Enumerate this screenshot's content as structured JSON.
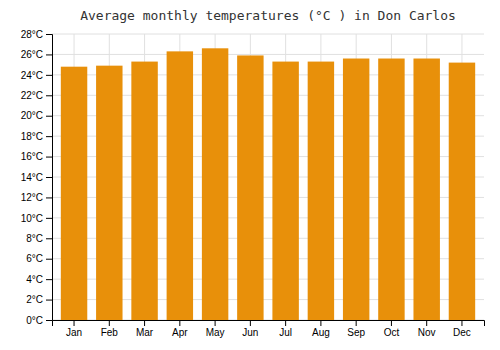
{
  "chart_data": {
    "type": "bar",
    "title": "Average monthly temperatures (°C ) in Don Carlos",
    "categories": [
      "Jan",
      "Feb",
      "Mar",
      "Apr",
      "May",
      "Jun",
      "Jul",
      "Aug",
      "Sep",
      "Oct",
      "Nov",
      "Dec"
    ],
    "values": [
      24.8,
      24.9,
      25.3,
      26.3,
      26.6,
      25.9,
      25.3,
      25.3,
      25.6,
      25.6,
      25.6,
      25.2
    ],
    "color": "#E8900A",
    "ylim": [
      0,
      28
    ],
    "yticks": [
      {
        "value": 0,
        "label": "0°C"
      },
      {
        "value": 2,
        "label": "2°C"
      },
      {
        "value": 4,
        "label": "4°C"
      },
      {
        "value": 6,
        "label": "6°C"
      },
      {
        "value": 8,
        "label": "8°C"
      },
      {
        "value": 10,
        "label": "10°C"
      },
      {
        "value": 12,
        "label": "12°C"
      },
      {
        "value": 14,
        "label": "14°C"
      },
      {
        "value": 16,
        "label": "16°C"
      },
      {
        "value": 18,
        "label": "18°C"
      },
      {
        "value": 20,
        "label": "20°C"
      },
      {
        "value": 22,
        "label": "22°C"
      },
      {
        "value": 24,
        "label": "24°C"
      },
      {
        "value": 26,
        "label": "26°C"
      },
      {
        "value": 28,
        "label": "28°C"
      }
    ],
    "grid": true
  }
}
